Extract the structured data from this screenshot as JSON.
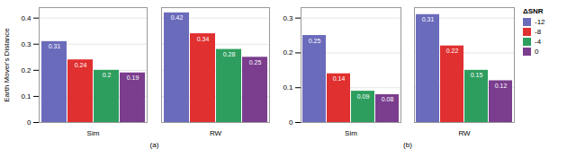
{
  "chart_data": [
    {
      "type": "bar",
      "categories": [
        "Sim",
        "RW"
      ],
      "series": [
        {
          "name": "-12",
          "color": "#6b6bbc",
          "values": [
            0.31,
            0.42
          ]
        },
        {
          "name": "-8",
          "color": "#e03030",
          "values": [
            0.24,
            0.34
          ]
        },
        {
          "name": "-4",
          "color": "#2e9e5e",
          "values": [
            0.2,
            0.28
          ]
        },
        {
          "name": "0",
          "color": "#7b3d8e",
          "values": [
            0.19,
            0.25
          ]
        }
      ],
      "ylabel": "Earth Mover's Distance",
      "xlabel": "(a)",
      "ylim": [
        0,
        0.44
      ],
      "yticks": [
        0,
        0.1,
        0.2,
        0.3,
        0.4
      ],
      "grid": true,
      "data_labels": true
    },
    {
      "type": "bar",
      "categories": [
        "Sim",
        "RW"
      ],
      "series": [
        {
          "name": "-12",
          "color": "#6b6bbc",
          "values": [
            0.25,
            0.31
          ]
        },
        {
          "name": "-8",
          "color": "#e03030",
          "values": [
            0.14,
            0.22
          ]
        },
        {
          "name": "-4",
          "color": "#2e9e5e",
          "values": [
            0.09,
            0.15
          ]
        },
        {
          "name": "0",
          "color": "#7b3d8e",
          "values": [
            0.08,
            0.12
          ]
        }
      ],
      "xlabel": "(b)",
      "ylim": [
        0,
        0.33
      ],
      "yticks": [
        0,
        0.1,
        0.2,
        0.3
      ],
      "grid": true,
      "data_labels": true,
      "legend": "upper right",
      "legend_title": "ΔSNR"
    }
  ]
}
